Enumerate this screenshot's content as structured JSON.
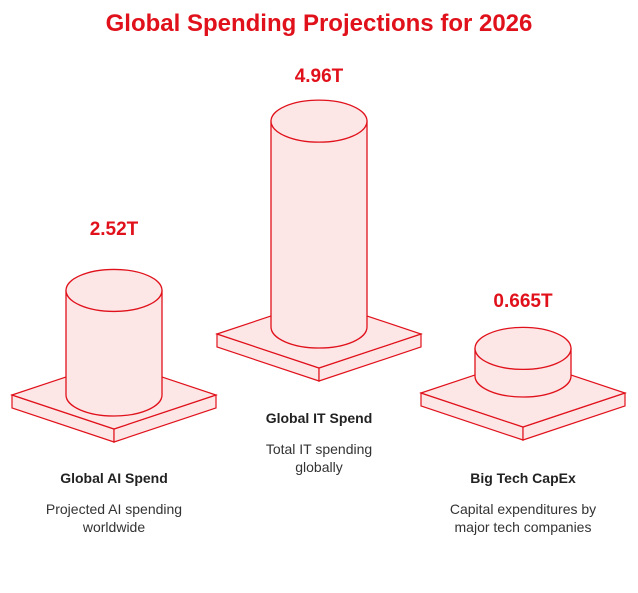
{
  "accent": "#e0111b",
  "fill": "#fde6e6",
  "title": "Global Spending Projections for 2026",
  "chart_data": {
    "type": "bar",
    "title": "Global Spending Projections for 2026",
    "categories": [
      "Global AI Spend",
      "Global IT Spend",
      "Big Tech CapEx"
    ],
    "values": [
      2.52,
      4.96,
      0.665
    ],
    "value_labels": [
      "2.52T",
      "4.96T",
      "0.665T"
    ],
    "descriptions": [
      "Projected AI spending worldwide",
      "Total IT spending globally",
      "Capital expenditures by major tech companies"
    ]
  }
}
